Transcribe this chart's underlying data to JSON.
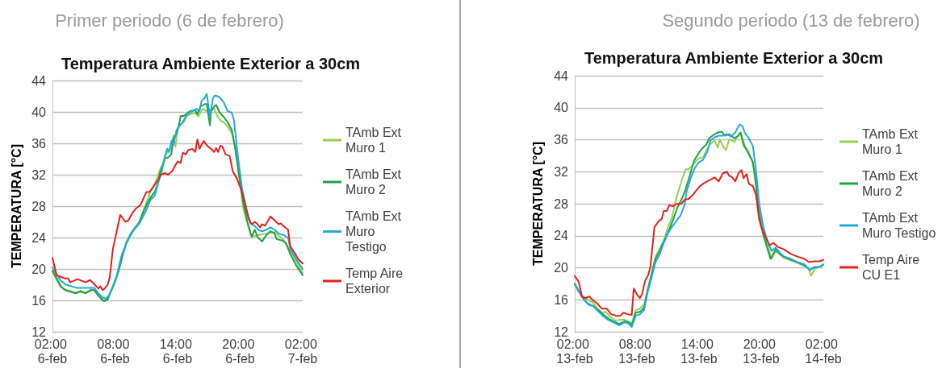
{
  "chart_data": [
    {
      "type": "line",
      "subtitle": "Primer periodo (6 de febrero)",
      "title": "Temperatura Ambiente Exterior a 30cm",
      "ylabel": "TEMPERATURA [°C]",
      "xlim": [
        "--02-06T02:00",
        "--02-07T02:00"
      ],
      "xticks": [
        {
          "value": "--02-06T02:00",
          "label": "02:00 6-feb"
        },
        {
          "value": "--02-06T08:00",
          "label": "08:00 6-feb"
        },
        {
          "value": "--02-06T14:00",
          "label": "14:00 6-feb"
        },
        {
          "value": "--02-06T20:00",
          "label": "20:00 6-feb"
        },
        {
          "value": "--02-07T02:00",
          "label": "02:00 7-feb"
        }
      ],
      "ylim": [
        12,
        44
      ],
      "yticks": [
        12,
        16,
        20,
        24,
        28,
        32,
        36,
        40,
        44
      ],
      "grid": "y",
      "legend": "right",
      "marker": "none",
      "line_style": "solid",
      "series": [
        {
          "name": "TAmb Ext Muro 1",
          "color": "#92d050",
          "x": [
            "--02-06T02:00",
            "--02-06T02:24",
            "--02-06T02:48",
            "--02-06T03:12",
            "--02-06T03:42",
            "--02-06T04:12",
            "--02-06T04:42",
            "--02-06T05:12",
            "--02-06T05:42",
            "--02-06T06:00",
            "--02-06T06:24",
            "--02-06T06:48",
            "--02-06T07:00",
            "--02-06T07:18",
            "--02-06T07:30",
            "--02-06T07:54",
            "--02-06T08:18",
            "--02-06T08:42",
            "--02-06T09:06",
            "--02-06T09:30",
            "--02-06T09:54",
            "--02-06T10:18",
            "--02-06T10:36",
            "--02-06T11:00",
            "--02-06T11:24",
            "--02-06T11:48",
            "--02-06T12:06",
            "--02-06T12:18",
            "--02-06T12:36",
            "--02-06T12:48",
            "--02-06T13:06",
            "--02-06T13:24",
            "--02-06T13:36",
            "--02-06T13:48",
            "--02-06T14:00",
            "--02-06T14:18",
            "--02-06T14:36",
            "--02-06T14:54",
            "--02-06T15:12",
            "--02-06T15:42",
            "--02-06T16:00",
            "--02-06T16:24",
            "--02-06T16:54",
            "--02-06T17:12",
            "--02-06T17:30",
            "--02-06T17:48",
            "--02-06T18:06",
            "--02-06T18:36",
            "--02-06T19:12",
            "--02-06T19:30",
            "--02-06T19:54",
            "--02-06T20:18",
            "--02-06T20:48",
            "--02-06T21:06",
            "--02-06T21:42",
            "--02-06T22:30",
            "--02-06T23:18",
            "--02-07T00:06",
            "--02-07T00:48",
            "--02-07T02:00"
          ],
          "values": [
            19.6,
            18.6,
            17.7,
            17.4,
            17.2,
            17.0,
            17.2,
            17.0,
            17.4,
            17.3,
            16.7,
            16.1,
            16.0,
            16.2,
            16.9,
            18.1,
            19.7,
            21.8,
            23.5,
            24.5,
            25.3,
            26.0,
            27.0,
            28.4,
            29.8,
            30.8,
            31.8,
            32.6,
            33.5,
            34.4,
            35.0,
            35.4,
            37.0,
            35.6,
            37.8,
            38.4,
            38.7,
            39.5,
            39.7,
            39.9,
            39.4,
            40.4,
            40.0,
            40.3,
            40.4,
            39.5,
            38.9,
            38.5,
            37.3,
            35.6,
            31.9,
            27.7,
            25.3,
            24.1,
            24.3,
            24.5,
            24.7,
            23.8,
            22.3,
            19.5
          ]
        },
        {
          "name": "TAmb Ext Muro 2",
          "color": "#22a046",
          "x": [
            "--02-06T02:00",
            "--02-06T02:24",
            "--02-06T02:48",
            "--02-06T03:12",
            "--02-06T03:42",
            "--02-06T04:12",
            "--02-06T04:42",
            "--02-06T05:12",
            "--02-06T05:42",
            "--02-06T06:00",
            "--02-06T06:24",
            "--02-06T06:48",
            "--02-06T07:00",
            "--02-06T07:18",
            "--02-06T07:30",
            "--02-06T07:54",
            "--02-06T08:18",
            "--02-06T08:42",
            "--02-06T09:06",
            "--02-06T09:30",
            "--02-06T09:54",
            "--02-06T10:18",
            "--02-06T10:36",
            "--02-06T11:00",
            "--02-06T11:24",
            "--02-06T11:48",
            "--02-06T12:06",
            "--02-06T12:18",
            "--02-06T12:36",
            "--02-06T12:48",
            "--02-06T13:06",
            "--02-06T13:24",
            "--02-06T13:36",
            "--02-06T13:54",
            "--02-06T14:06",
            "--02-06T14:18",
            "--02-06T14:36",
            "--02-06T15:12",
            "--02-06T15:42",
            "--02-06T15:54",
            "--02-06T16:12",
            "--02-06T16:36",
            "--02-06T16:48",
            "--02-06T17:06",
            "--02-06T17:12",
            "--02-06T17:30",
            "--02-06T17:42",
            "--02-06T18:00",
            "--02-06T18:24",
            "--02-06T18:48",
            "--02-06T19:12",
            "--02-06T19:30",
            "--02-06T19:54",
            "--02-06T20:18",
            "--02-06T20:42",
            "--02-06T21:06",
            "--02-06T21:24",
            "--02-06T21:42",
            "--02-06T22:06",
            "--02-06T22:30",
            "--02-06T22:54",
            "--02-06T23:18",
            "--02-06T23:30",
            "--02-07T00:06",
            "--02-07T00:24",
            "--02-07T00:48",
            "--02-07T01:24",
            "--02-07T02:00"
          ],
          "values": [
            19.8,
            18.8,
            17.8,
            17.3,
            17.1,
            16.9,
            17.1,
            16.9,
            17.3,
            17.3,
            16.6,
            16.0,
            15.9,
            16.1,
            16.8,
            18.0,
            19.5,
            21.6,
            23.3,
            24.3,
            25.2,
            25.8,
            26.9,
            28.1,
            29.1,
            29.8,
            30.8,
            32.2,
            33.2,
            34.1,
            34.2,
            34.6,
            36.6,
            37.2,
            38.2,
            39.5,
            39.5,
            40.1,
            40.2,
            39.7,
            40.7,
            41.0,
            41.0,
            38.3,
            40.0,
            40.7,
            40.9,
            40.0,
            39.4,
            38.7,
            37.7,
            35.6,
            31.9,
            28.4,
            26.0,
            24.1,
            25.0,
            24.0,
            23.5,
            24.3,
            24.8,
            24.5,
            23.8,
            23.6,
            23.3,
            21.9,
            20.4,
            19.2
          ]
        },
        {
          "name": "TAmb Ext Muro Testigo",
          "color": "#22a8e0",
          "x": [
            "--02-06T02:00",
            "--02-06T02:24",
            "--02-06T02:48",
            "--02-06T03:18",
            "--02-06T03:48",
            "--02-06T04:18",
            "--02-06T04:48",
            "--02-06T05:30",
            "--02-06T06:00",
            "--02-06T06:24",
            "--02-06T06:48",
            "--02-06T07:06",
            "--02-06T07:24",
            "--02-06T07:48",
            "--02-06T08:12",
            "--02-06T08:36",
            "--02-06T09:06",
            "--02-06T09:36",
            "--02-06T10:18",
            "--02-06T10:54",
            "--02-06T11:24",
            "--02-06T11:48",
            "--02-06T12:12",
            "--02-06T12:30",
            "--02-06T12:48",
            "--02-06T13:00",
            "--02-06T13:12",
            "--02-06T13:24",
            "--02-06T13:36",
            "--02-06T13:54",
            "--02-06T14:12",
            "--02-06T14:30",
            "--02-06T14:54",
            "--02-06T15:24",
            "--02-06T15:48",
            "--02-06T16:06",
            "--02-06T16:18",
            "--02-06T16:36",
            "--02-06T16:48",
            "--02-06T17:06",
            "--02-06T17:24",
            "--02-06T17:36",
            "--02-06T18:00",
            "--02-06T18:24",
            "--02-06T18:48",
            "--02-06T19:12",
            "--02-06T19:24",
            "--02-06T19:48",
            "--02-06T20:12",
            "--02-06T20:36",
            "--02-06T21:00",
            "--02-06T21:24",
            "--02-06T21:42",
            "--02-06T22:06",
            "--02-06T22:30",
            "--02-06T22:54",
            "--02-06T23:18",
            "--02-06T23:42",
            "--02-07T00:12",
            "--02-07T00:36",
            "--02-07T00:48",
            "--02-07T01:24",
            "--02-07T02:00"
          ],
          "values": [
            20.2,
            19.3,
            18.5,
            18.0,
            17.8,
            17.6,
            17.6,
            17.6,
            17.6,
            16.9,
            16.4,
            16.2,
            16.6,
            17.8,
            19.3,
            21.6,
            23.3,
            24.7,
            25.7,
            27.2,
            28.8,
            29.3,
            31.2,
            32.5,
            34.4,
            35.3,
            34.9,
            36.3,
            35.8,
            37.7,
            38.3,
            38.7,
            39.7,
            40.1,
            40.4,
            40.1,
            41.4,
            41.8,
            42.3,
            39.4,
            41.8,
            42.1,
            41.9,
            41.3,
            40.1,
            39.9,
            39.0,
            34.2,
            30.1,
            27.7,
            25.8,
            25.5,
            25.0,
            24.8,
            25.0,
            25.3,
            25.0,
            24.5,
            24.3,
            24.0,
            22.6,
            21.2,
            20.0
          ]
        },
        {
          "name": "Temp Aire Exterior",
          "color": "#e3201b",
          "x": [
            "--02-06T02:00",
            "--02-06T02:24",
            "--02-06T02:48",
            "--02-06T03:12",
            "--02-06T03:30",
            "--02-06T03:42",
            "--02-06T04:24",
            "--02-06T05:12",
            "--02-06T05:36",
            "--02-06T06:00",
            "--02-06T06:24",
            "--02-06T06:36",
            "--02-06T06:48",
            "--02-06T07:00",
            "--02-06T07:18",
            "--02-06T07:30",
            "--02-06T07:48",
            "--02-06T08:12",
            "--02-06T08:30",
            "--02-06T09:00",
            "--02-06T09:18",
            "--02-06T09:36",
            "--02-06T10:00",
            "--02-06T10:24",
            "--02-06T10:36",
            "--02-06T11:00",
            "--02-06T11:18",
            "--02-06T11:42",
            "--02-06T12:12",
            "--02-06T12:24",
            "--02-06T12:48",
            "--02-06T13:06",
            "--02-06T13:30",
            "--02-06T13:42",
            "--02-06T14:00",
            "--02-06T14:18",
            "--02-06T14:30",
            "--02-06T14:48",
            "--02-06T15:00",
            "--02-06T15:24",
            "--02-06T15:42",
            "--02-06T15:54",
            "--02-06T16:06",
            "--02-06T16:30",
            "--02-06T16:54",
            "--02-06T17:12",
            "--02-06T17:30",
            "--02-06T17:42",
            "--02-06T17:54",
            "--02-06T18:06",
            "--02-06T18:18",
            "--02-06T18:36",
            "--02-06T19:00",
            "--02-06T19:18",
            "--02-06T19:42",
            "--02-06T20:06",
            "--02-06T20:30",
            "--02-06T20:48",
            "--02-06T21:06",
            "--02-06T21:24",
            "--02-06T21:36",
            "--02-06T21:54",
            "--02-06T22:06",
            "--02-06T22:24",
            "--02-06T22:54",
            "--02-06T23:18",
            "--02-06T23:42",
            "--02-06T23:54",
            "--02-07T00:18",
            "--02-07T00:36",
            "--02-07T00:48",
            "--02-07T01:12",
            "--02-07T01:36",
            "--02-07T02:00"
          ],
          "values": [
            21.4,
            19.2,
            19.0,
            18.8,
            18.8,
            18.3,
            18.7,
            18.3,
            18.6,
            18.1,
            17.5,
            17.8,
            17.3,
            17.5,
            18.0,
            19.0,
            22.6,
            25.0,
            26.9,
            26.0,
            26.2,
            27.0,
            27.7,
            28.1,
            28.6,
            29.8,
            29.8,
            30.5,
            31.5,
            32.0,
            32.2,
            32.0,
            32.5,
            33.0,
            33.7,
            33.5,
            34.8,
            34.6,
            35.1,
            35.3,
            34.9,
            36.5,
            35.3,
            36.3,
            35.6,
            35.3,
            34.9,
            35.4,
            34.9,
            35.7,
            35.6,
            34.6,
            34.4,
            32.4,
            31.5,
            30.1,
            28.1,
            26.4,
            25.7,
            26.0,
            25.8,
            25.3,
            25.7,
            25.5,
            26.7,
            26.2,
            25.7,
            25.8,
            25.3,
            25.0,
            22.9,
            22.1,
            21.2,
            20.7
          ]
        }
      ]
    },
    {
      "type": "line",
      "subtitle": "Segundo periodo (13 de febrero)",
      "title": "Temperatura Ambiente Exterior a 30cm",
      "ylabel": "TEMPERATURA [°C]",
      "xlim": [
        "--02-13T02:00",
        "--02-14T02:00"
      ],
      "xticks": [
        {
          "value": "--02-13T02:00",
          "label": "02:00 13-feb"
        },
        {
          "value": "--02-13T08:00",
          "label": "08:00 13-feb"
        },
        {
          "value": "--02-13T14:00",
          "label": "14:00 13-feb"
        },
        {
          "value": "--02-13T20:00",
          "label": "20:00 13-feb"
        },
        {
          "value": "--02-14T02:00",
          "label": "02:00 14-feb"
        }
      ],
      "ylim": [
        12,
        44
      ],
      "yticks": [
        12,
        16,
        20,
        24,
        28,
        32,
        36,
        40,
        44
      ],
      "grid": "y",
      "legend": "right",
      "marker": "none",
      "line_style": "solid",
      "series": [
        {
          "name": "TAmb Ext Muro 1",
          "color": "#92d050",
          "x": [
            "--02-13T02:00",
            "--02-13T02:24",
            "--02-13T02:48",
            "--02-13T03:12",
            "--02-13T03:42",
            "--02-13T04:12",
            "--02-13T04:36",
            "--02-13T05:00",
            "--02-13T05:24",
            "--02-13T05:54",
            "--02-13T06:24",
            "--02-13T06:48",
            "--02-13T07:18",
            "--02-13T07:30",
            "--02-13T07:54",
            "--02-13T08:18",
            "--02-13T08:42",
            "--02-13T09:00",
            "--02-13T09:24",
            "--02-13T09:48",
            "--02-13T10:12",
            "--02-13T10:36",
            "--02-13T11:00",
            "--02-13T11:24",
            "--02-13T11:36",
            "--02-13T11:54",
            "--02-13T12:18",
            "--02-13T12:42",
            "--02-13T13:00",
            "--02-13T13:18",
            "--02-13T13:42",
            "--02-13T14:00",
            "--02-13T14:24",
            "--02-13T14:48",
            "--02-13T15:06",
            "--02-13T15:30",
            "--02-13T15:48",
            "--02-13T16:00",
            "--02-13T16:18",
            "--02-13T16:36",
            "--02-13T16:54",
            "--02-13T17:06",
            "--02-13T17:24",
            "--02-13T17:42",
            "--02-13T18:00",
            "--02-13T18:18",
            "--02-13T18:42",
            "--02-13T19:06",
            "--02-13T19:18",
            "--02-13T19:48",
            "--02-13T20:12",
            "--02-13T20:36",
            "--02-13T21:00",
            "--02-13T21:24",
            "--02-13T21:48",
            "--02-13T22:12",
            "--02-13T22:54",
            "--02-13T23:30",
            "--02-14T00:12",
            "--02-14T00:36",
            "--02-14T00:48",
            "--02-14T01:12",
            "--02-14T01:36",
            "--02-14T02:00"
          ],
          "values": [
            18.0,
            17.2,
            16.4,
            16.0,
            15.7,
            14.9,
            14.4,
            14.5,
            13.9,
            13.4,
            13.5,
            13.5,
            13.2,
            13.0,
            14.7,
            14.9,
            15.4,
            17.0,
            19.1,
            21.4,
            22.4,
            23.4,
            25.1,
            26.3,
            27.6,
            29.1,
            30.8,
            32.3,
            32.3,
            32.7,
            33.3,
            33.7,
            33.8,
            34.9,
            35.5,
            35.9,
            35.0,
            36.0,
            35.2,
            34.7,
            36.0,
            36.0,
            35.7,
            36.4,
            36.9,
            35.2,
            34.7,
            33.5,
            32.2,
            27.1,
            24.4,
            22.8,
            21.1,
            22.1,
            21.7,
            21.2,
            20.9,
            20.6,
            20.2,
            19.9,
            19.0,
            19.9,
            20.1,
            20.4
          ]
        },
        {
          "name": "TAmb Ext Muro 2",
          "color": "#22a046",
          "x": [
            "--02-13T02:00",
            "--02-13T02:24",
            "--02-13T02:54",
            "--02-13T03:18",
            "--02-13T03:48",
            "--02-13T04:18",
            "--02-13T04:42",
            "--02-13T05:12",
            "--02-13T05:42",
            "--02-13T06:18",
            "--02-13T06:48",
            "--02-13T07:12",
            "--02-13T07:30",
            "--02-13T07:54",
            "--02-13T08:18",
            "--02-13T08:42",
            "--02-13T09:00",
            "--02-13T09:24",
            "--02-13T09:48",
            "--02-13T10:12",
            "--02-13T10:36",
            "--02-13T11:00",
            "--02-13T11:30",
            "--02-13T11:54",
            "--02-13T12:18",
            "--02-13T12:42",
            "--02-13T13:06",
            "--02-13T13:30",
            "--02-13T13:54",
            "--02-13T14:18",
            "--02-13T14:42",
            "--02-13T15:00",
            "--02-13T15:24",
            "--02-13T15:48",
            "--02-13T16:12",
            "--02-13T16:30",
            "--02-13T16:54",
            "--02-13T17:24",
            "--02-13T17:48",
            "--02-13T18:00",
            "--02-13T18:24",
            "--02-13T18:48",
            "--02-13T19:12",
            "--02-13T19:30",
            "--02-13T19:48",
            "--02-13T20:12",
            "--02-13T20:36",
            "--02-13T20:54",
            "--02-13T21:24",
            "--02-13T21:48",
            "--02-13T22:12",
            "--02-13T22:54",
            "--02-13T23:30",
            "--02-14T00:12",
            "--02-14T00:42",
            "--02-14T01:06",
            "--02-14T01:36",
            "--02-14T02:00"
          ],
          "values": [
            18.0,
            17.0,
            16.0,
            15.5,
            15.2,
            14.7,
            14.2,
            13.7,
            13.3,
            13.0,
            13.3,
            13.2,
            12.8,
            14.4,
            14.5,
            15.0,
            17.0,
            19.1,
            21.1,
            22.1,
            23.3,
            24.4,
            26.0,
            27.5,
            28.5,
            29.8,
            31.5,
            33.3,
            34.2,
            34.9,
            35.4,
            36.2,
            36.6,
            36.9,
            37.0,
            36.5,
            36.7,
            36.2,
            36.5,
            36.9,
            35.2,
            34.2,
            33.2,
            30.5,
            26.5,
            24.1,
            22.4,
            21.1,
            22.3,
            21.7,
            21.4,
            21.0,
            20.7,
            20.3,
            19.7,
            20.0,
            20.1,
            20.4
          ]
        },
        {
          "name": "TAmb Ext Muro Testigo",
          "color": "#22a8e0",
          "x": [
            "--02-13T02:00",
            "--02-13T02:24",
            "--02-13T02:54",
            "--02-13T03:18",
            "--02-13T03:48",
            "--02-13T04:18",
            "--02-13T04:42",
            "--02-13T05:12",
            "--02-13T05:42",
            "--02-13T06:18",
            "--02-13T06:48",
            "--02-13T07:12",
            "--02-13T07:30",
            "--02-13T07:54",
            "--02-13T08:18",
            "--02-13T08:42",
            "--02-13T09:00",
            "--02-13T09:24",
            "--02-13T09:48",
            "--02-13T10:12",
            "--02-13T10:36",
            "--02-13T11:00",
            "--02-13T11:30",
            "--02-13T11:54",
            "--02-13T12:12",
            "--02-13T12:36",
            "--02-13T12:48",
            "--02-13T13:12",
            "--02-13T13:36",
            "--02-13T14:00",
            "--02-13T14:24",
            "--02-13T14:48",
            "--02-13T15:06",
            "--02-13T15:30",
            "--02-13T15:54",
            "--02-13T16:18",
            "--02-13T16:42",
            "--02-13T17:06",
            "--02-13T17:30",
            "--02-13T17:54",
            "--02-13T18:12",
            "--02-13T18:24",
            "--02-13T18:48",
            "--02-13T19:12",
            "--02-13T19:30",
            "--02-13T19:48",
            "--02-13T20:12",
            "--02-13T20:36",
            "--02-13T21:00",
            "--02-13T21:24",
            "--02-13T21:48",
            "--02-13T22:12",
            "--02-13T22:54",
            "--02-13T23:30",
            "--02-14T00:12",
            "--02-14T00:42",
            "--02-14T01:06",
            "--02-14T01:36",
            "--02-14T02:00"
          ],
          "values": [
            17.9,
            17.0,
            16.0,
            15.4,
            15.2,
            14.5,
            14.0,
            13.5,
            13.2,
            12.8,
            13.2,
            13.0,
            12.6,
            14.0,
            14.2,
            14.7,
            16.7,
            18.7,
            20.7,
            21.7,
            23.1,
            24.3,
            25.3,
            26.0,
            26.5,
            27.8,
            29.5,
            31.2,
            32.5,
            33.2,
            33.5,
            34.5,
            35.9,
            36.3,
            36.5,
            36.5,
            36.7,
            36.4,
            36.9,
            37.9,
            37.7,
            36.9,
            36.2,
            35.2,
            32.2,
            28.1,
            25.1,
            23.4,
            22.1,
            22.5,
            21.9,
            21.4,
            21.1,
            20.7,
            20.4,
            19.7,
            20.1,
            20.1,
            20.4
          ]
        },
        {
          "name": "Temp Aire CU E1",
          "color": "#e3201b",
          "x": [
            "--02-13T02:00",
            "--02-13T02:24",
            "--02-13T02:42",
            "--02-13T03:00",
            "--02-13T03:24",
            "--02-13T03:48",
            "--02-13T04:12",
            "--02-13T04:36",
            "--02-13T05:06",
            "--02-13T05:30",
            "--02-13T06:00",
            "--02-13T06:24",
            "--02-13T06:42",
            "--02-13T07:06",
            "--02-13T07:30",
            "--02-13T07:42",
            "--02-13T08:00",
            "--02-13T08:18",
            "--02-13T08:30",
            "--02-13T08:48",
            "--02-13T09:06",
            "--02-13T09:18",
            "--02-13T09:42",
            "--02-13T10:06",
            "--02-13T10:24",
            "--02-13T10:36",
            "--02-13T10:54",
            "--02-13T11:06",
            "--02-13T11:30",
            "--02-13T11:54",
            "--02-13T12:18",
            "--02-13T12:36",
            "--02-13T13:00",
            "--02-13T13:24",
            "--02-13T13:42",
            "--02-13T14:06",
            "--02-13T14:24",
            "--02-13T14:48",
            "--02-13T15:06",
            "--02-13T15:30",
            "--02-13T15:54",
            "--02-13T16:18",
            "--02-13T16:42",
            "--02-13T16:54",
            "--02-13T17:12",
            "--02-13T17:30",
            "--02-13T17:48",
            "--02-13T18:06",
            "--02-13T18:18",
            "--02-13T18:36",
            "--02-13T18:48",
            "--02-13T19:12",
            "--02-13T19:30",
            "--02-13T19:48",
            "--02-13T20:00",
            "--02-13T20:24",
            "--02-13T20:48",
            "--02-13T21:12",
            "--02-13T21:36",
            "--02-13T22:12",
            "--02-13T22:54",
            "--02-13T23:30",
            "--02-14T00:12",
            "--02-14T00:36",
            "--02-14T01:06",
            "--02-14T01:36",
            "--02-14T02:00"
          ],
          "values": [
            19.0,
            18.2,
            16.4,
            16.2,
            16.4,
            15.9,
            15.5,
            14.9,
            14.9,
            14.2,
            14.0,
            14.0,
            14.4,
            14.2,
            14.1,
            17.4,
            16.7,
            16.2,
            16.7,
            18.4,
            19.1,
            20.1,
            25.1,
            25.8,
            26.1,
            27.1,
            27.1,
            27.8,
            27.7,
            28.0,
            28.0,
            28.5,
            28.6,
            29.1,
            29.6,
            30.2,
            30.5,
            30.8,
            31.0,
            31.3,
            30.8,
            31.8,
            32.0,
            31.5,
            31.3,
            30.8,
            31.8,
            32.2,
            31.2,
            31.7,
            30.5,
            30.2,
            29.1,
            26.1,
            25.1,
            23.9,
            22.8,
            23.1,
            22.6,
            22.3,
            21.7,
            21.4,
            21.1,
            20.7,
            20.8,
            20.8,
            21.0
          ]
        }
      ]
    }
  ]
}
